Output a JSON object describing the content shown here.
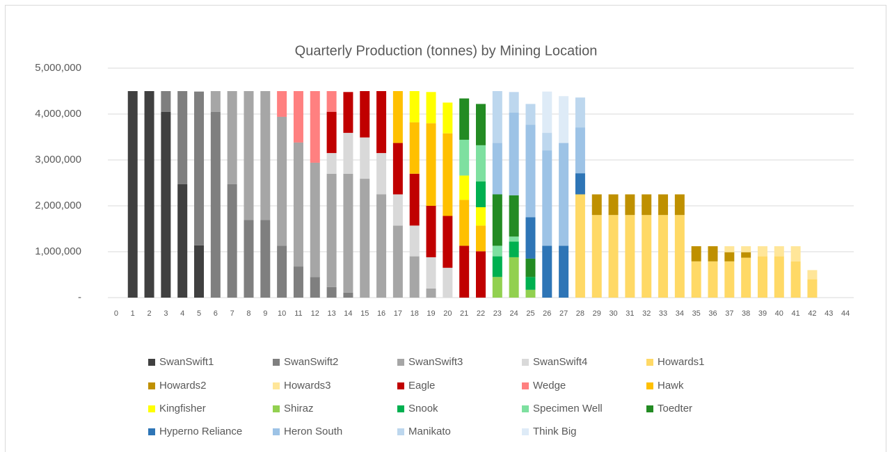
{
  "chart_data": {
    "type": "stacked_bar",
    "title": "Quarterly Production (tonnes) by Mining Location",
    "categories": [
      0,
      1,
      2,
      3,
      4,
      5,
      6,
      7,
      8,
      9,
      10,
      11,
      12,
      13,
      14,
      15,
      16,
      17,
      18,
      19,
      20,
      21,
      22,
      23,
      24,
      25,
      26,
      27,
      28,
      29,
      30,
      31,
      32,
      33,
      34,
      35,
      36,
      37,
      38,
      39,
      40,
      41,
      42,
      43,
      44
    ],
    "ylim": [
      0,
      5000000
    ],
    "yticks": [
      {
        "value": 0,
        "label": "-"
      },
      {
        "value": 1000000,
        "label": "1,000,000"
      },
      {
        "value": 2000000,
        "label": "2,000,000"
      },
      {
        "value": 3000000,
        "label": "3,000,000"
      },
      {
        "value": 4000000,
        "label": "4,000,000"
      },
      {
        "value": 5000000,
        "label": "5,000,000"
      }
    ],
    "grid": true,
    "legend": "bottom",
    "series": [
      {
        "name": "SwanSwift1",
        "color": "#404040",
        "values": [
          0,
          4500000,
          4500000,
          4050000,
          2470000,
          1140000,
          0,
          0,
          0,
          0,
          0,
          0,
          0,
          0,
          0,
          0,
          0,
          0,
          0,
          0,
          0,
          0,
          0,
          0,
          0,
          0,
          0,
          0,
          0,
          0,
          0,
          0,
          0,
          0,
          0,
          0,
          0,
          0,
          0,
          0,
          0,
          0,
          0,
          0,
          0
        ]
      },
      {
        "name": "SwanSwift2",
        "color": "#7f7f7f",
        "values": [
          0,
          0,
          0,
          450000,
          2030000,
          3350000,
          4050000,
          2470000,
          1690000,
          1690000,
          1130000,
          680000,
          450000,
          230000,
          110000,
          0,
          0,
          0,
          0,
          0,
          0,
          0,
          0,
          0,
          0,
          0,
          0,
          0,
          0,
          0,
          0,
          0,
          0,
          0,
          0,
          0,
          0,
          0,
          0,
          0,
          0,
          0,
          0,
          0,
          0
        ]
      },
      {
        "name": "SwanSwift3",
        "color": "#a6a6a6",
        "values": [
          0,
          0,
          0,
          0,
          0,
          0,
          450000,
          2030000,
          2810000,
          2810000,
          2810000,
          2700000,
          2490000,
          2470000,
          2590000,
          2590000,
          2250000,
          1570000,
          900000,
          200000,
          0,
          0,
          0,
          0,
          0,
          0,
          0,
          0,
          0,
          0,
          0,
          0,
          0,
          0,
          0,
          0,
          0,
          0,
          0,
          0,
          0,
          0,
          0,
          0,
          0
        ]
      },
      {
        "name": "SwanSwift4",
        "color": "#d9d9d9",
        "values": [
          0,
          0,
          0,
          0,
          0,
          0,
          0,
          0,
          0,
          0,
          0,
          0,
          0,
          450000,
          890000,
          900000,
          900000,
          680000,
          670000,
          680000,
          650000,
          0,
          0,
          0,
          0,
          0,
          0,
          0,
          0,
          0,
          0,
          0,
          0,
          0,
          0,
          0,
          0,
          0,
          0,
          0,
          0,
          0,
          0,
          0,
          0
        ]
      },
      {
        "name": "Howards1",
        "color": "#ffd966",
        "values": [
          0,
          0,
          0,
          0,
          0,
          0,
          0,
          0,
          0,
          0,
          0,
          0,
          0,
          0,
          0,
          0,
          0,
          0,
          0,
          0,
          0,
          0,
          0,
          0,
          0,
          0,
          0,
          0,
          2250000,
          1800000,
          1800000,
          1800000,
          1800000,
          1800000,
          1800000,
          790000,
          790000,
          790000,
          870000,
          900000,
          900000,
          790000,
          400000,
          0,
          0
        ]
      },
      {
        "name": "Howards2",
        "color": "#bf9000",
        "values": [
          0,
          0,
          0,
          0,
          0,
          0,
          0,
          0,
          0,
          0,
          0,
          0,
          0,
          0,
          0,
          0,
          0,
          0,
          0,
          0,
          0,
          0,
          0,
          0,
          0,
          0,
          0,
          0,
          0,
          450000,
          450000,
          450000,
          450000,
          450000,
          450000,
          330000,
          330000,
          200000,
          120000,
          0,
          0,
          0,
          0,
          0,
          0
        ]
      },
      {
        "name": "Howards3",
        "color": "#ffe699",
        "values": [
          0,
          0,
          0,
          0,
          0,
          0,
          0,
          0,
          0,
          0,
          0,
          0,
          0,
          0,
          0,
          0,
          0,
          0,
          0,
          0,
          0,
          0,
          0,
          0,
          0,
          0,
          0,
          0,
          0,
          0,
          0,
          0,
          0,
          0,
          0,
          0,
          0,
          130000,
          130000,
          220000,
          220000,
          330000,
          200000,
          0,
          0
        ]
      },
      {
        "name": "Eagle",
        "color": "#c00000",
        "values": [
          0,
          0,
          0,
          0,
          0,
          0,
          0,
          0,
          0,
          0,
          0,
          0,
          0,
          900000,
          890000,
          1010000,
          1350000,
          1120000,
          1130000,
          1120000,
          1130000,
          1130000,
          1010000,
          0,
          0,
          0,
          0,
          0,
          0,
          0,
          0,
          0,
          0,
          0,
          0,
          0,
          0,
          0,
          0,
          0,
          0,
          0,
          0,
          0,
          0
        ]
      },
      {
        "name": "Wedge",
        "color": "#ff8080",
        "values": [
          0,
          0,
          0,
          0,
          0,
          0,
          0,
          0,
          0,
          0,
          560000,
          1120000,
          1560000,
          450000,
          0,
          0,
          0,
          0,
          0,
          0,
          0,
          0,
          0,
          0,
          0,
          0,
          0,
          0,
          0,
          0,
          0,
          0,
          0,
          0,
          0,
          0,
          0,
          0,
          0,
          0,
          0,
          0,
          0,
          0,
          0
        ]
      },
      {
        "name": "Hawk",
        "color": "#ffc000",
        "values": [
          0,
          0,
          0,
          0,
          0,
          0,
          0,
          0,
          0,
          0,
          0,
          0,
          0,
          0,
          0,
          0,
          0,
          1130000,
          1120000,
          1800000,
          1800000,
          1000000,
          560000,
          0,
          0,
          0,
          0,
          0,
          0,
          0,
          0,
          0,
          0,
          0,
          0,
          0,
          0,
          0,
          0,
          0,
          0,
          0,
          0,
          0,
          0
        ]
      },
      {
        "name": "Kingfisher",
        "color": "#ffff00",
        "values": [
          0,
          0,
          0,
          0,
          0,
          0,
          0,
          0,
          0,
          0,
          0,
          0,
          0,
          0,
          0,
          0,
          0,
          0,
          680000,
          680000,
          670000,
          530000,
          400000,
          0,
          0,
          0,
          0,
          0,
          0,
          0,
          0,
          0,
          0,
          0,
          0,
          0,
          0,
          0,
          0,
          0,
          0,
          0,
          0,
          0,
          0
        ]
      },
      {
        "name": "Shiraz",
        "color": "#92d050",
        "values": [
          0,
          0,
          0,
          0,
          0,
          0,
          0,
          0,
          0,
          0,
          0,
          0,
          0,
          0,
          0,
          0,
          0,
          0,
          0,
          0,
          0,
          0,
          0,
          450000,
          880000,
          170000,
          0,
          0,
          0,
          0,
          0,
          0,
          0,
          0,
          0,
          0,
          0,
          0,
          0,
          0,
          0,
          0,
          0,
          0,
          0
        ]
      },
      {
        "name": "Snook",
        "color": "#00b050",
        "values": [
          0,
          0,
          0,
          0,
          0,
          0,
          0,
          0,
          0,
          0,
          0,
          0,
          0,
          0,
          0,
          0,
          0,
          0,
          0,
          0,
          0,
          0,
          560000,
          450000,
          340000,
          280000,
          0,
          0,
          0,
          0,
          0,
          0,
          0,
          0,
          0,
          0,
          0,
          0,
          0,
          0,
          0,
          0,
          0,
          0,
          0
        ]
      },
      {
        "name": "Specimen Well",
        "color": "#7ee0a0",
        "values": [
          0,
          0,
          0,
          0,
          0,
          0,
          0,
          0,
          0,
          0,
          0,
          0,
          0,
          0,
          0,
          0,
          0,
          0,
          0,
          0,
          0,
          780000,
          790000,
          230000,
          110000,
          0,
          0,
          0,
          0,
          0,
          0,
          0,
          0,
          0,
          0,
          0,
          0,
          0,
          0,
          0,
          0,
          0,
          0,
          0,
          0
        ]
      },
      {
        "name": "Toedter",
        "color": "#238b23",
        "values": [
          0,
          0,
          0,
          0,
          0,
          0,
          0,
          0,
          0,
          0,
          0,
          0,
          0,
          0,
          0,
          0,
          0,
          0,
          0,
          0,
          0,
          900000,
          900000,
          1120000,
          900000,
          400000,
          0,
          0,
          0,
          0,
          0,
          0,
          0,
          0,
          0,
          0,
          0,
          0,
          0,
          0,
          0,
          0,
          0,
          0,
          0
        ]
      },
      {
        "name": "Hyperno Reliance",
        "color": "#2e75b6",
        "values": [
          0,
          0,
          0,
          0,
          0,
          0,
          0,
          0,
          0,
          0,
          0,
          0,
          0,
          0,
          0,
          0,
          0,
          0,
          0,
          0,
          0,
          0,
          0,
          0,
          0,
          900000,
          1130000,
          1130000,
          460000,
          0,
          0,
          0,
          0,
          0,
          0,
          0,
          0,
          0,
          0,
          0,
          0,
          0,
          0,
          0,
          0
        ]
      },
      {
        "name": "Heron South",
        "color": "#9dc3e6",
        "values": [
          0,
          0,
          0,
          0,
          0,
          0,
          0,
          0,
          0,
          0,
          0,
          0,
          0,
          0,
          0,
          0,
          0,
          0,
          0,
          0,
          0,
          0,
          0,
          1120000,
          1800000,
          2020000,
          2080000,
          2240000,
          1000000,
          0,
          0,
          0,
          0,
          0,
          0,
          0,
          0,
          0,
          0,
          0,
          0,
          0,
          0,
          0,
          0
        ]
      },
      {
        "name": "Manikato",
        "color": "#bdd7ee",
        "values": [
          0,
          0,
          0,
          0,
          0,
          0,
          0,
          0,
          0,
          0,
          0,
          0,
          0,
          0,
          0,
          0,
          0,
          0,
          0,
          0,
          0,
          0,
          0,
          1130000,
          450000,
          450000,
          380000,
          0,
          650000,
          0,
          0,
          0,
          0,
          0,
          0,
          0,
          0,
          0,
          0,
          0,
          0,
          0,
          0,
          0,
          0
        ]
      },
      {
        "name": "Think Big",
        "color": "#deebf7",
        "values": [
          0,
          0,
          0,
          0,
          0,
          0,
          0,
          0,
          0,
          0,
          0,
          0,
          0,
          0,
          0,
          0,
          0,
          0,
          0,
          0,
          0,
          0,
          0,
          0,
          0,
          0,
          900000,
          1020000,
          0,
          0,
          0,
          0,
          0,
          0,
          0,
          0,
          0,
          0,
          0,
          0,
          0,
          0,
          0,
          0,
          0
        ]
      }
    ]
  }
}
